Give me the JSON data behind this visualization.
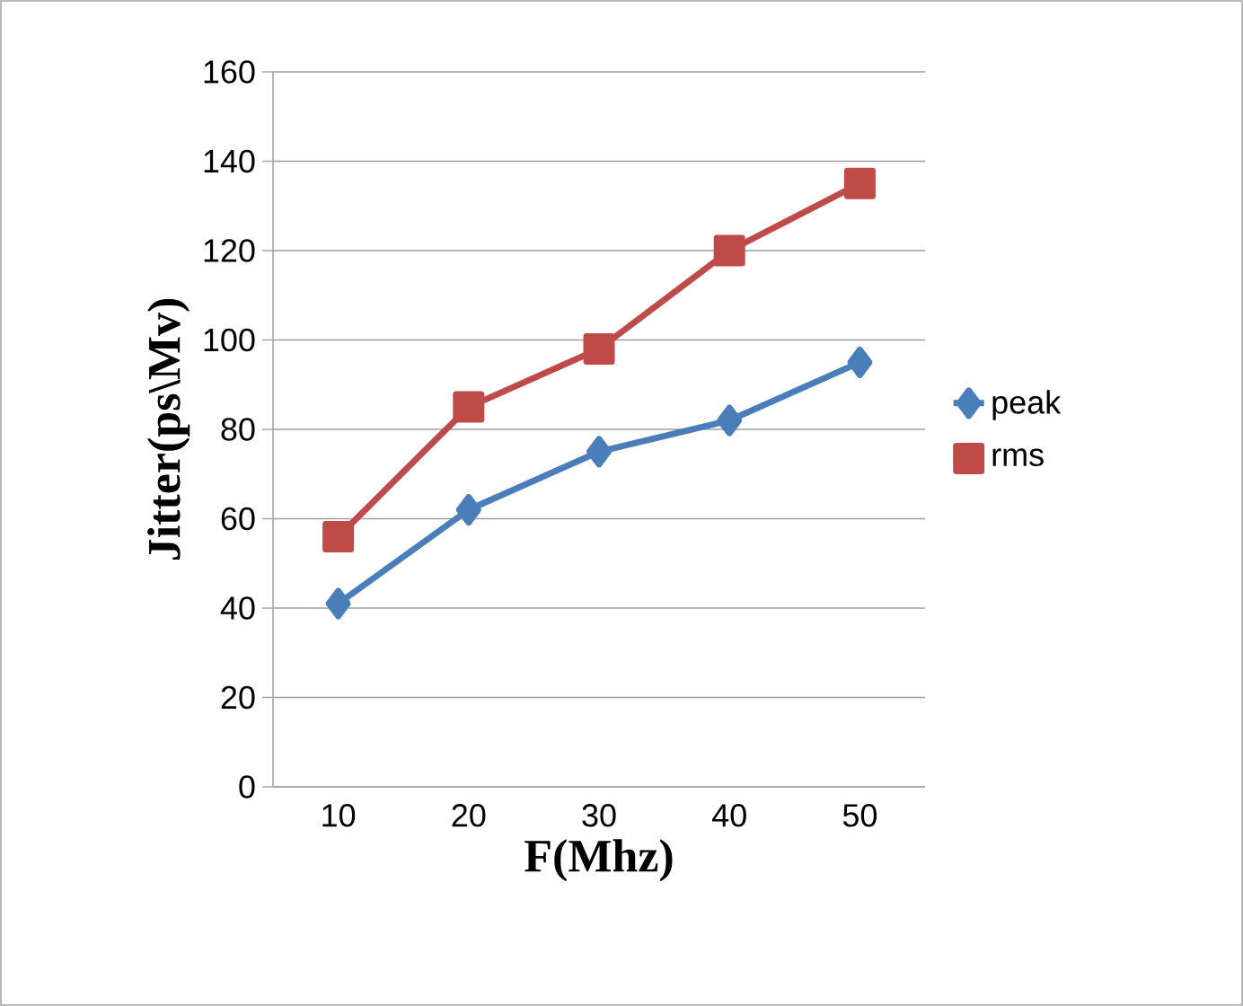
{
  "chart_data": {
    "type": "line",
    "xlabel": "F(Mhz)",
    "ylabel": "Jitter(ps\\Mv)",
    "categories": [
      "10",
      "20",
      "30",
      "40",
      "50"
    ],
    "series": [
      {
        "name": "peak",
        "color": "#4a7ebb",
        "marker": "diamond",
        "values": [
          41,
          62,
          75,
          82,
          95
        ]
      },
      {
        "name": "rms",
        "color": "#be4b48",
        "marker": "square",
        "values": [
          56,
          85,
          98,
          120,
          135
        ]
      }
    ],
    "ylim": [
      0,
      160
    ],
    "yticks": [
      0,
      20,
      40,
      60,
      80,
      100,
      120,
      140,
      160
    ],
    "grid": "y",
    "legend": "right",
    "line_style": "solid"
  }
}
